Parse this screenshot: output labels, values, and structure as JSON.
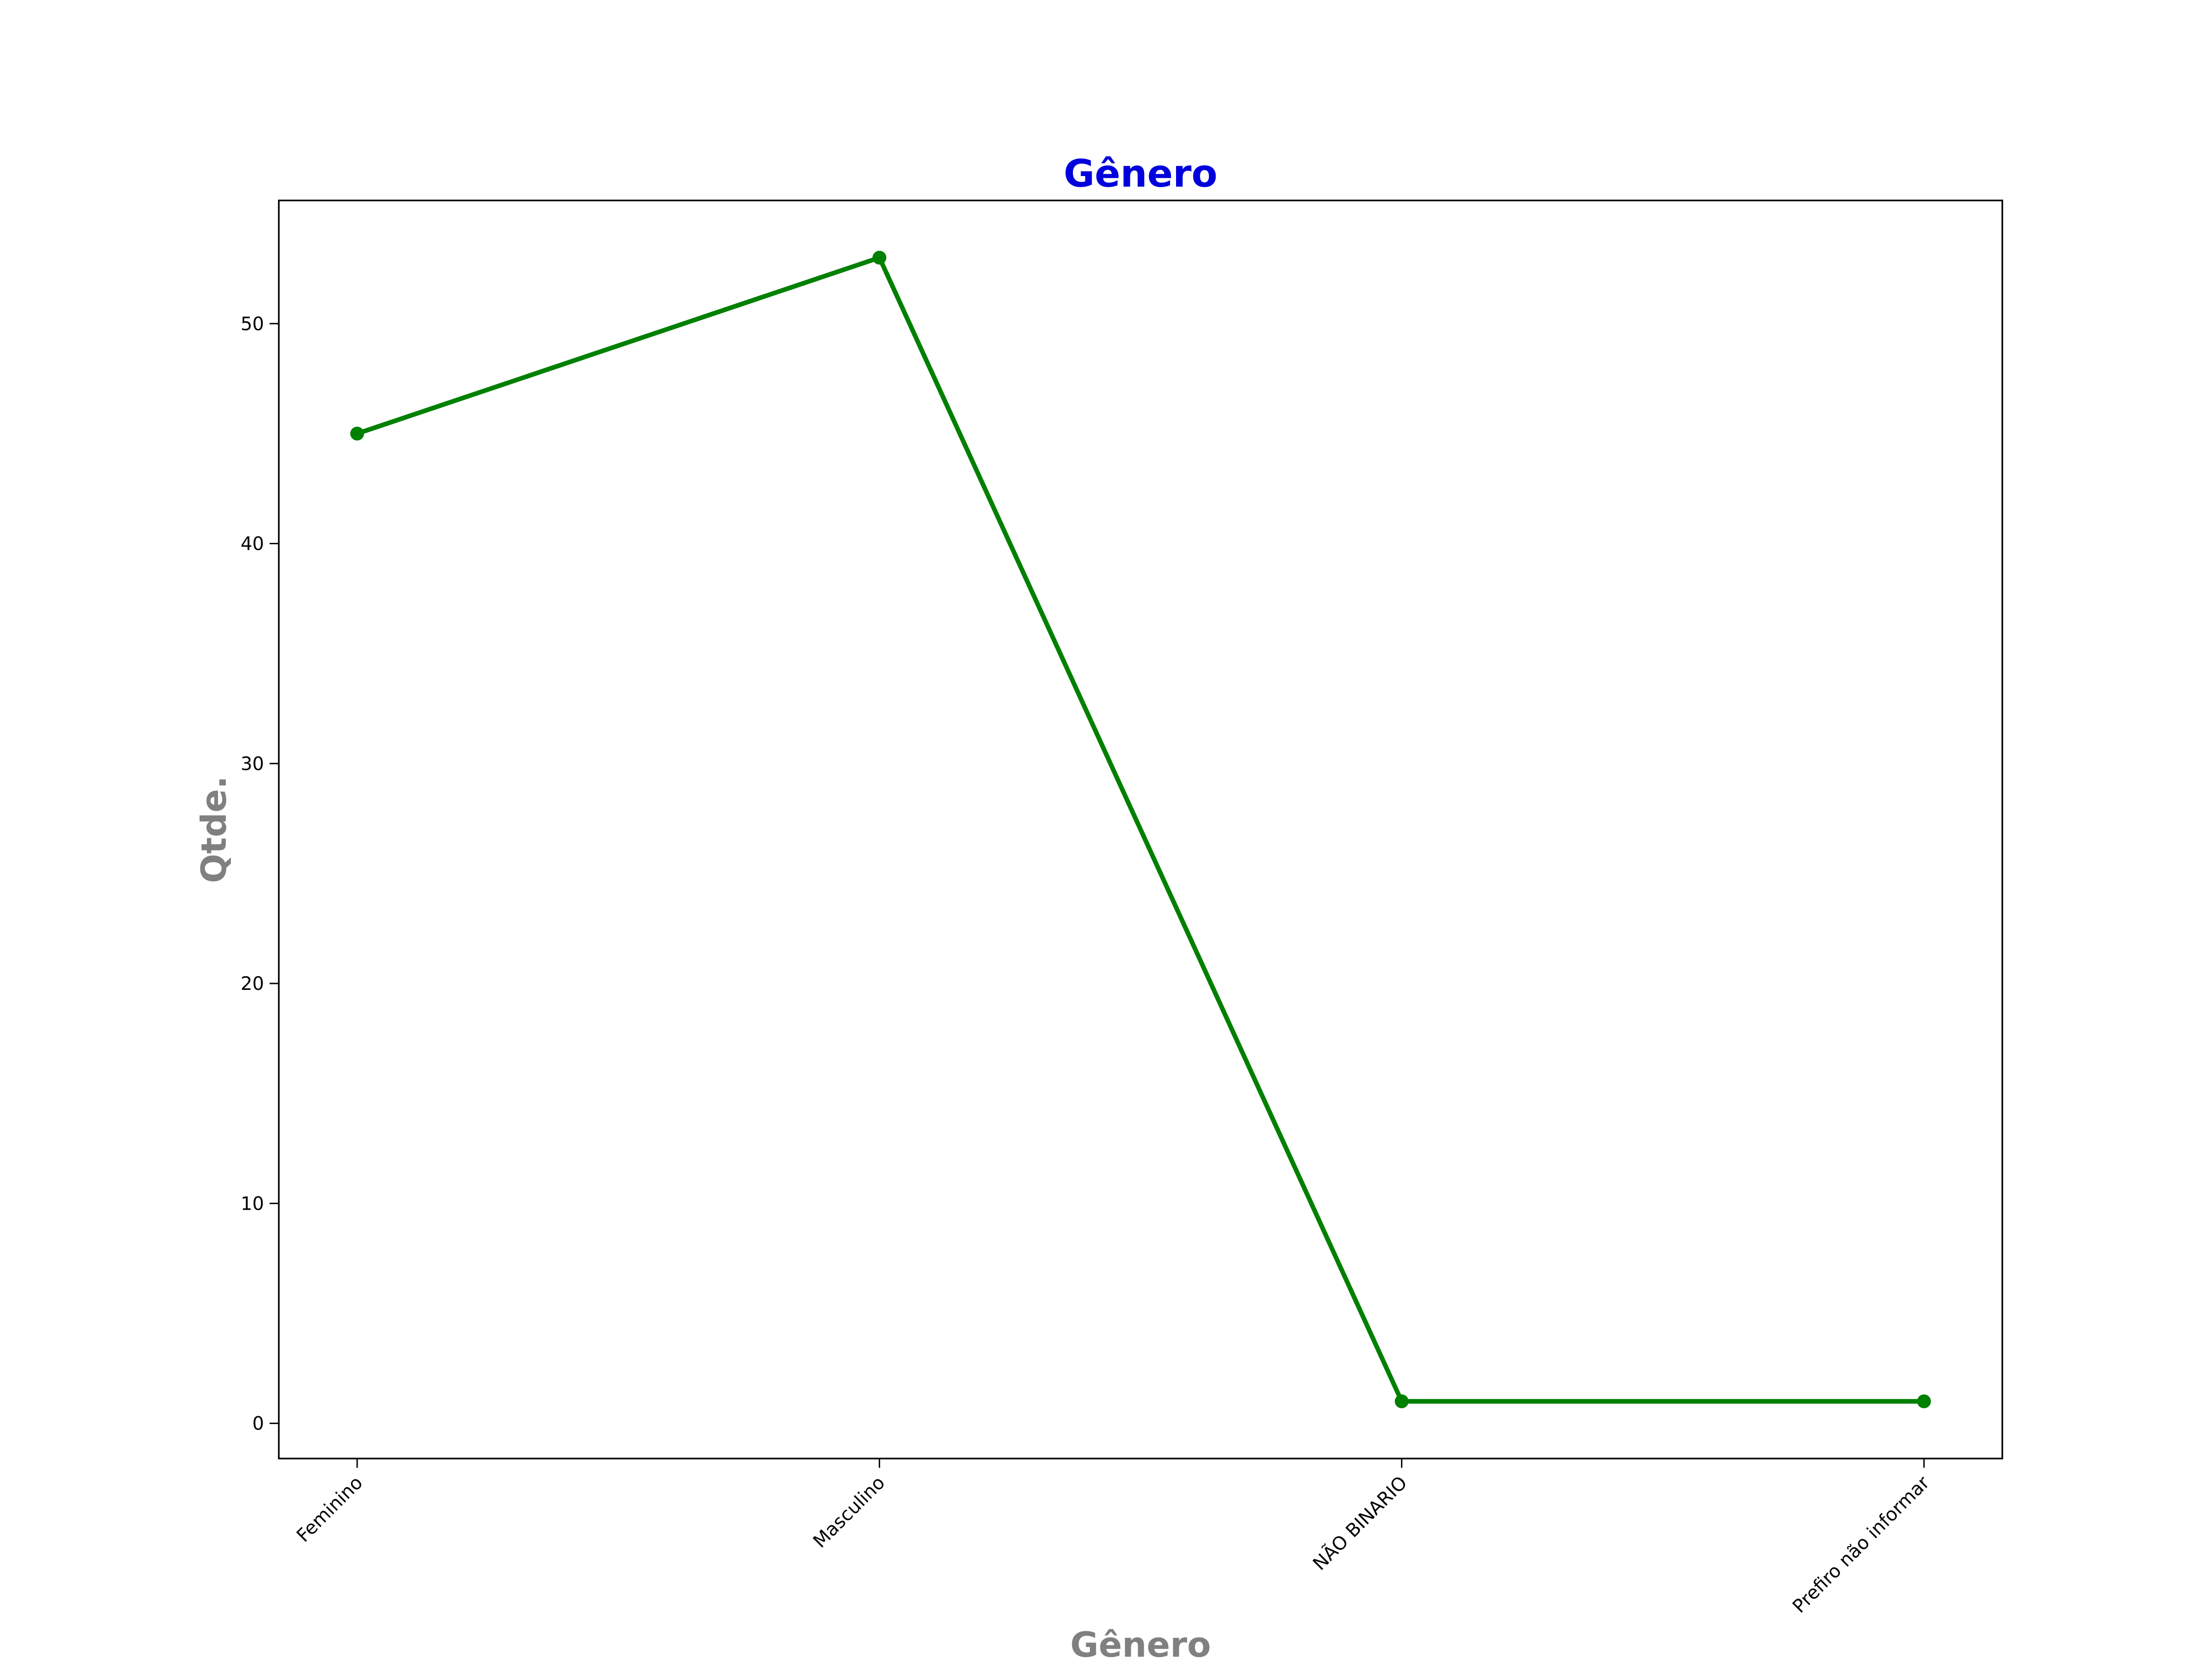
{
  "chart_data": {
    "type": "line",
    "title": "Gênero",
    "xlabel": "Gênero",
    "ylabel": "Qtde.",
    "categories": [
      "Feminino",
      "Masculino",
      "NÃO BINARIO",
      "Prefiro não informar"
    ],
    "series": [
      {
        "values": [
          45,
          53,
          1,
          1
        ]
      }
    ],
    "ylim": [
      -1.6,
      55.6
    ],
    "yticks": [
      0,
      10,
      20,
      30,
      40,
      50
    ],
    "grid": false,
    "line_color": "#008000",
    "title_color": "#0000dd",
    "axis_label_color": "#808080"
  }
}
